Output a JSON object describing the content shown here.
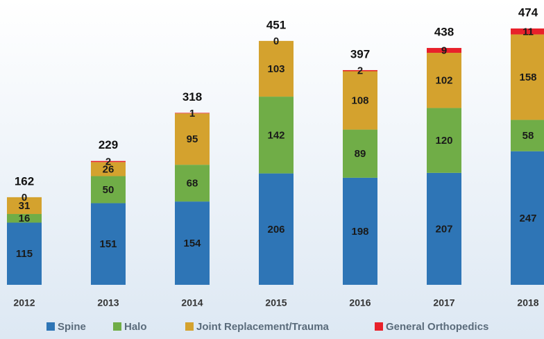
{
  "chart_data": {
    "type": "stacked_bar",
    "categories": [
      "2012",
      "2013",
      "2014",
      "2015",
      "2016",
      "2017",
      "2018"
    ],
    "series": [
      {
        "name": "Spine",
        "color": "#2e75b6",
        "values": [
          115,
          151,
          154,
          206,
          198,
          207,
          247
        ]
      },
      {
        "name": "Halo",
        "color": "#70ad47",
        "values": [
          16,
          50,
          68,
          142,
          89,
          120,
          58
        ]
      },
      {
        "name": "Joint Replacement/Trauma",
        "color": "#d4a22e",
        "values": [
          31,
          26,
          95,
          103,
          108,
          102,
          158
        ]
      },
      {
        "name": "General Orthopedics",
        "color": "#e8212b",
        "values": [
          0,
          2,
          1,
          0,
          2,
          9,
          11
        ]
      }
    ],
    "totals": [
      162,
      229,
      318,
      451,
      397,
      438,
      474
    ],
    "legend": "bottom"
  }
}
